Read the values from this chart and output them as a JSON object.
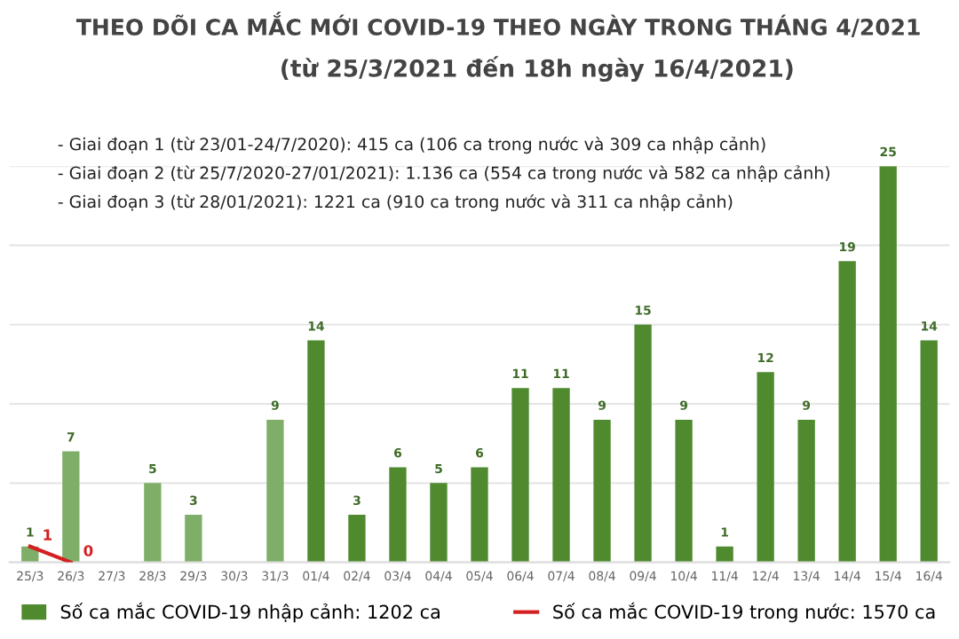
{
  "chart_data": {
    "type": "bar",
    "title": "THEO DÕI CA MẮC MỚI COVID-19 THEO NGÀY TRONG THÁNG 4/2021",
    "subtitle": "(từ 25/3/2021 đến 18h ngày 16/4/2021)",
    "categories": [
      "25/3",
      "26/3",
      "27/3",
      "28/3",
      "29/3",
      "30/3",
      "31/3",
      "01/4",
      "02/4",
      "03/4",
      "04/4",
      "05/4",
      "06/4",
      "07/4",
      "08/4",
      "09/4",
      "10/4",
      "11/4",
      "12/4",
      "13/4",
      "14/4",
      "15/4",
      "16/4"
    ],
    "series": [
      {
        "name": "Số ca mắc COVID-19 nhập cảnh: 1202 ca",
        "color": "#4f8a2f",
        "colors": [
          "#7fae68",
          "#7fae68",
          "#7fae68",
          "#7fae68",
          "#7fae68",
          "#7fae68",
          "#7fae68",
          "#4f8a2f",
          "#4f8a2f",
          "#4f8a2f",
          "#4f8a2f",
          "#4f8a2f",
          "#4f8a2f",
          "#4f8a2f",
          "#4f8a2f",
          "#4f8a2f",
          "#4f8a2f",
          "#4f8a2f",
          "#4f8a2f",
          "#4f8a2f",
          "#4f8a2f",
          "#4f8a2f",
          "#4f8a2f"
        ],
        "values": [
          1,
          7,
          0,
          5,
          3,
          0,
          9,
          14,
          3,
          6,
          5,
          6,
          11,
          11,
          9,
          15,
          9,
          1,
          12,
          9,
          19,
          25,
          14
        ],
        "value_labels": [
          "1",
          "7",
          null,
          "5",
          "3",
          null,
          "9",
          "14",
          "3",
          "6",
          "5",
          "6",
          "11",
          "11",
          "9",
          "15",
          "9",
          "1",
          "12",
          "9",
          "19",
          "25",
          "14"
        ]
      },
      {
        "name": "Số ca mắc COVID-19 trong nước: 1570 ca",
        "type": "line",
        "color": "#d42020",
        "values": [
          1,
          0,
          null,
          null,
          null,
          null,
          null,
          null,
          null,
          null,
          null,
          null,
          null,
          null,
          null,
          null,
          null,
          null,
          null,
          null,
          null,
          null,
          null
        ],
        "value_labels": [
          "1",
          "0",
          null,
          null,
          null,
          null,
          null,
          null,
          null,
          null,
          null,
          null,
          null,
          null,
          null,
          null,
          null,
          null,
          null,
          null,
          null,
          null,
          null
        ]
      }
    ],
    "ylim": [
      0,
      25
    ],
    "yticks": [
      {
        "value": 0,
        "label": null
      },
      {
        "value": 5,
        "label": null
      },
      {
        "value": 10,
        "label": null
      },
      {
        "value": 15,
        "label": null
      },
      {
        "value": 20,
        "label": null
      },
      {
        "value": 25,
        "label": null
      }
    ],
    "tick_labels": "x",
    "grid": "y",
    "legend": "bottom",
    "marker": "none",
    "annotations": [
      "- Giai đoạn 1 (từ 23/01-24/7/2020): 415 ca (106 ca trong nước và 309 ca nhập cảnh)",
      "- Giai đoạn 2 (từ 25/7/2020-27/01/2021): 1.136 ca (554 ca trong nước và 582 ca nhập cảnh)",
      "- Giai đoạn 3 (từ 28/01/2021): 1221 ca (910 ca trong nước và 311 ca nhập cảnh)"
    ]
  }
}
